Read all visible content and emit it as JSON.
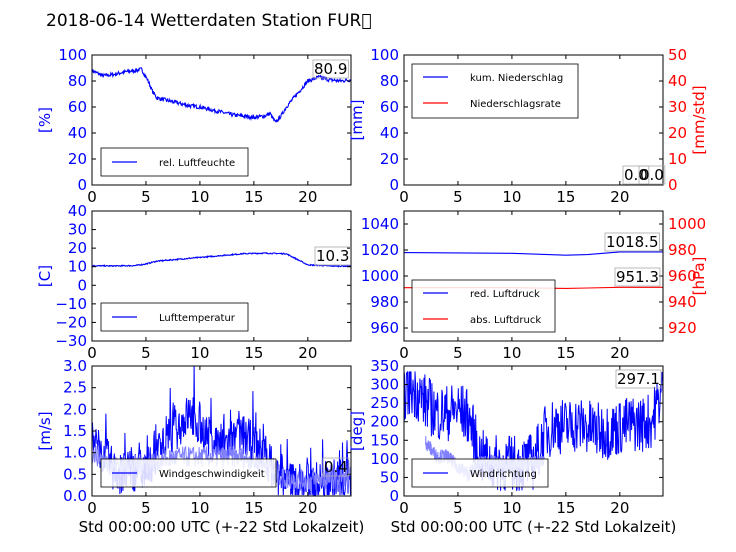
{
  "title": "2018-06-14 Wetterdaten Station FUR\u0000",
  "colors": {
    "blue": "#0000ff",
    "red": "#ff0000",
    "lightblue": "#8080ff",
    "black": "#000000"
  },
  "chart_data": [
    {
      "type": "line",
      "id": "humidity",
      "ylabel": "[%]",
      "xlabel": "",
      "xlim": [
        0,
        24
      ],
      "ylim": [
        0,
        100
      ],
      "xticks": [
        "0",
        "5",
        "10",
        "15",
        "20"
      ],
      "yticks": [
        "0",
        "20",
        "40",
        "60",
        "80",
        "100"
      ],
      "legend": "bottom-left",
      "last_value": "80.9",
      "series": [
        {
          "name": "rel. Luftfeuchte",
          "color": "#0000ff",
          "noise": 3,
          "points": [
            [
              0,
              88
            ],
            [
              0.5,
              86
            ],
            [
              1,
              84
            ],
            [
              2,
              85
            ],
            [
              3,
              87
            ],
            [
              4,
              88
            ],
            [
              4.6,
              89
            ],
            [
              5.2,
              80
            ],
            [
              5.6,
              72
            ],
            [
              6,
              67
            ],
            [
              7,
              65
            ],
            [
              8,
              63
            ],
            [
              9,
              61
            ],
            [
              10,
              60
            ],
            [
              11,
              58
            ],
            [
              12,
              56
            ],
            [
              13,
              54
            ],
            [
              14,
              53
            ],
            [
              15,
              52
            ],
            [
              16,
              53
            ],
            [
              16.5,
              55
            ],
            [
              17,
              48
            ],
            [
              17.5,
              53
            ],
            [
              18,
              60
            ],
            [
              19,
              70
            ],
            [
              20,
              80
            ],
            [
              21,
              83
            ],
            [
              22,
              81
            ],
            [
              23,
              80
            ],
            [
              24,
              81
            ]
          ]
        }
      ]
    },
    {
      "type": "line",
      "id": "precipitation",
      "ylabel": "[mm]",
      "ylabel2": "[mm/std]",
      "xlabel": "",
      "xlim": [
        0,
        24
      ],
      "ylim": [
        0,
        100
      ],
      "ylim2": [
        0,
        50
      ],
      "xticks": [
        "0",
        "5",
        "10",
        "15",
        "20"
      ],
      "yticks": [
        "0",
        "20",
        "40",
        "60",
        "80",
        "100"
      ],
      "yticks2": [
        "0",
        "10",
        "20",
        "30",
        "40",
        "50"
      ],
      "legend": "top-left",
      "last_value": "0.0",
      "last_value2": "0.0",
      "series": [
        {
          "name": "kum. Niederschlag",
          "color": "#0000ff",
          "points": [
            [
              0,
              0
            ],
            [
              24,
              0
            ]
          ]
        },
        {
          "name": "Niederschlagsrate",
          "color": "#ff0000",
          "axis": "right",
          "points": [
            [
              0,
              0
            ],
            [
              24,
              0
            ]
          ]
        }
      ]
    },
    {
      "type": "line",
      "id": "temperature",
      "ylabel": "[C]",
      "xlabel": "",
      "xlim": [
        0,
        24
      ],
      "ylim": [
        -30,
        40
      ],
      "xticks": [
        "0",
        "5",
        "10",
        "15",
        "20"
      ],
      "yticks": [
        "−30",
        "−20",
        "−10",
        "0",
        "10",
        "20",
        "30",
        "40"
      ],
      "legend": "bottom-left",
      "last_value": "10.3",
      "series": [
        {
          "name": "Lufttemperatur",
          "color": "#0000ff",
          "noise": 0.6,
          "points": [
            [
              0,
              10.5
            ],
            [
              2,
              10.4
            ],
            [
              4,
              10.6
            ],
            [
              5,
              11.5
            ],
            [
              6,
              13
            ],
            [
              8,
              14
            ],
            [
              10,
              15
            ],
            [
              12,
              16
            ],
            [
              14,
              17
            ],
            [
              16,
              17.3
            ],
            [
              18,
              17
            ],
            [
              19,
              14
            ],
            [
              20,
              11
            ],
            [
              22,
              10.4
            ],
            [
              24,
              10.3
            ]
          ]
        }
      ]
    },
    {
      "type": "line",
      "id": "pressure",
      "ylabel": "",
      "ylabel2": "[hPa]",
      "xlabel": "",
      "xlim": [
        0,
        24
      ],
      "ylim": [
        950,
        1050
      ],
      "ylim2": [
        910,
        1010
      ],
      "xticks": [
        "0",
        "5",
        "10",
        "15",
        "20"
      ],
      "yticks": [
        "960",
        "980",
        "1000",
        "1020",
        "1040"
      ],
      "yticks2": [
        "920",
        "940",
        "960",
        "980",
        "1000"
      ],
      "legend": "bottom-left",
      "last_value": "1018.5",
      "last_value2": "951.3",
      "series": [
        {
          "name": "red. Luftdruck",
          "color": "#0000ff",
          "points": [
            [
              0,
              1018
            ],
            [
              5,
              1017.8
            ],
            [
              10,
              1017.5
            ],
            [
              15,
              1016
            ],
            [
              17,
              1016.5
            ],
            [
              20,
              1018.5
            ],
            [
              24,
              1018.5
            ]
          ]
        },
        {
          "name": "abs. Luftdruck",
          "color": "#ff0000",
          "axis": "right",
          "points": [
            [
              0,
              951
            ],
            [
              5,
              951
            ],
            [
              10,
              951
            ],
            [
              15,
              950.5
            ],
            [
              17,
              950.8
            ],
            [
              20,
              951.3
            ],
            [
              24,
              951.3
            ]
          ]
        }
      ]
    },
    {
      "type": "line",
      "id": "wind",
      "ylabel": "[m/s]",
      "xlabel": "Std 00:00:00 UTC (+-22 Std Lokalzeit)",
      "xlim": [
        0,
        24
      ],
      "ylim": [
        0,
        3
      ],
      "xticks": [
        "0",
        "5",
        "10",
        "15",
        "20"
      ],
      "yticks": [
        "0.0",
        "0.5",
        "1.0",
        "1.5",
        "2.0",
        "2.5",
        "3.0"
      ],
      "legend": "bottom-left",
      "last_value": "0.4",
      "series": [
        {
          "name": "Windgeschwindigkeit",
          "color": "#0000ff",
          "noise": 1.0,
          "points": [
            [
              0,
              1.2
            ],
            [
              1,
              1.0
            ],
            [
              2,
              0.6
            ],
            [
              3,
              0.5
            ],
            [
              4,
              0.6
            ],
            [
              5,
              0.6
            ],
            [
              6,
              1.0
            ],
            [
              7,
              1.3
            ],
            [
              8,
              1.6
            ],
            [
              9,
              1.9
            ],
            [
              10,
              1.6
            ],
            [
              11,
              1.3
            ],
            [
              12,
              1.2
            ],
            [
              13,
              1.3
            ],
            [
              14,
              1.4
            ],
            [
              15,
              1.2
            ],
            [
              16,
              1.0
            ],
            [
              17,
              0.5
            ],
            [
              18,
              0.35
            ],
            [
              19,
              0.3
            ],
            [
              20,
              0.3
            ],
            [
              21,
              0.3
            ],
            [
              22,
              0.35
            ],
            [
              23,
              0.4
            ],
            [
              24,
              0.4
            ]
          ]
        },
        {
          "name": "",
          "color": "#8080ff",
          "noise": 0.5,
          "points": [
            [
              0,
              1.0
            ],
            [
              2,
              0.7
            ],
            [
              4,
              0.7
            ],
            [
              6,
              0.8
            ],
            [
              8,
              0.9
            ],
            [
              10,
              0.9
            ],
            [
              12,
              0.9
            ],
            [
              14,
              0.9
            ],
            [
              16,
              0.7
            ],
            [
              18,
              0.4
            ],
            [
              20,
              0.35
            ],
            [
              22,
              0.4
            ],
            [
              24,
              0.45
            ]
          ]
        }
      ]
    },
    {
      "type": "line",
      "id": "winddirection",
      "ylabel": "[deg]",
      "xlabel": "Std 00:00:00 UTC (+-22 Std Lokalzeit)",
      "xlim": [
        0,
        24
      ],
      "ylim": [
        0,
        360
      ],
      "xticks": [
        "0",
        "5",
        "10",
        "15",
        "20"
      ],
      "yticks": [
        "0",
        "50",
        "100",
        "150",
        "200",
        "250",
        "300",
        "350"
      ],
      "legend": "bottom-left",
      "last_value": "297.1",
      "series": [
        {
          "name": "Windrichtung",
          "color": "#0000ff",
          "noise": 160,
          "points": [
            [
              0,
              290
            ],
            [
              1,
              295
            ],
            [
              2,
              260
            ],
            [
              3,
              230
            ],
            [
              4,
              230
            ],
            [
              5,
              240
            ],
            [
              6,
              220
            ],
            [
              7,
              110
            ],
            [
              8,
              90
            ],
            [
              9,
              90
            ],
            [
              10,
              90
            ],
            [
              11,
              90
            ],
            [
              12,
              95
            ],
            [
              13,
              170
            ],
            [
              14,
              200
            ],
            [
              15,
              190
            ],
            [
              16,
              200
            ],
            [
              17,
              190
            ],
            [
              18,
              180
            ],
            [
              19,
              180
            ],
            [
              20,
              190
            ],
            [
              21,
              200
            ],
            [
              22,
              200
            ],
            [
              23,
              210
            ],
            [
              24,
              300
            ]
          ]
        },
        {
          "name": "",
          "color": "#8080ff",
          "noise": 40,
          "points": [
            [
              2,
              150
            ],
            [
              3,
              110
            ],
            [
              4,
              110
            ],
            [
              5,
              80
            ],
            [
              6,
              60
            ],
            [
              7,
              90
            ],
            [
              8,
              95
            ],
            [
              9,
              90
            ],
            [
              10,
              80
            ],
            [
              11,
              90
            ],
            [
              12,
              90
            ],
            [
              13,
              100
            ]
          ]
        }
      ]
    }
  ]
}
